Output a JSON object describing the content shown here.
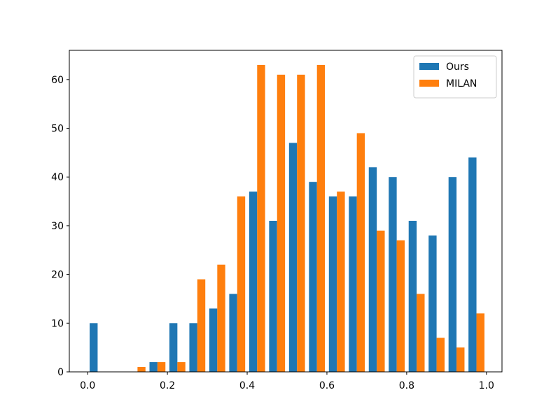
{
  "chart_data": {
    "type": "histogram",
    "bins": [
      0,
      0.05,
      0.1,
      0.15,
      0.2,
      0.25,
      0.3,
      0.35,
      0.4,
      0.45,
      0.5,
      0.55,
      0.6,
      0.65,
      0.7,
      0.75,
      0.8,
      0.85,
      0.9,
      0.95,
      1.0
    ],
    "series": [
      {
        "name": "Ours",
        "color": "#1f77b4",
        "values": [
          10,
          0,
          0,
          2,
          10,
          10,
          13,
          16,
          37,
          31,
          47,
          39,
          36,
          36,
          42,
          40,
          31,
          28,
          40,
          44
        ]
      },
      {
        "name": "MILAN",
        "color": "#ff7f0e",
        "values": [
          0,
          0,
          1,
          2,
          2,
          19,
          22,
          36,
          63,
          61,
          61,
          63,
          37,
          49,
          29,
          27,
          16,
          7,
          5,
          12
        ]
      }
    ],
    "xlim": [
      -0.046,
      1.039
    ],
    "xticks": [
      {
        "value": 0,
        "label": "0.0"
      },
      0.2,
      0.4,
      0.6,
      0.8,
      {
        "value": 1.0,
        "label": "1.0"
      }
    ],
    "ylim": [
      0,
      66
    ],
    "yticks": [
      0,
      10,
      20,
      30,
      40,
      50,
      60
    ],
    "legend": "upper right"
  }
}
